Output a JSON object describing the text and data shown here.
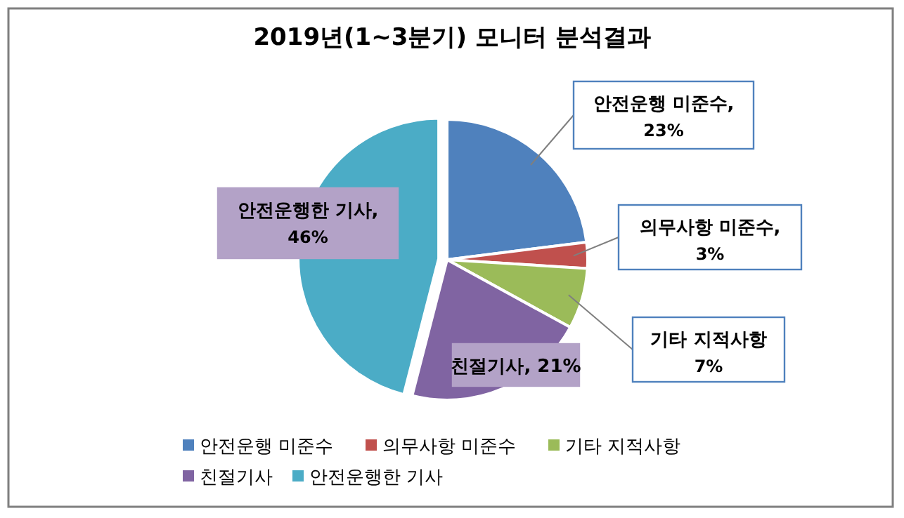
{
  "chart_data": {
    "type": "pie",
    "title": "2019년(1~3분기) 모니터 분석결과",
    "categories": [
      "안전운행 미준수",
      "의무사항 미준수",
      "기타 지적사항",
      "친절기사",
      "안전운행한 기사"
    ],
    "values": [
      23,
      3,
      7,
      21,
      46
    ],
    "value_labels": [
      "안전운행 미준수, 23%",
      "의무사항 미준수, 3%",
      "기타 지적사항 7%",
      "친절기사, 21%",
      "안전운행한 기사, 46%"
    ],
    "colors": [
      "#4f81bd",
      "#c0504d",
      "#9bbb59",
      "#8064a2",
      "#4bacc6"
    ],
    "legend": "bottom"
  }
}
